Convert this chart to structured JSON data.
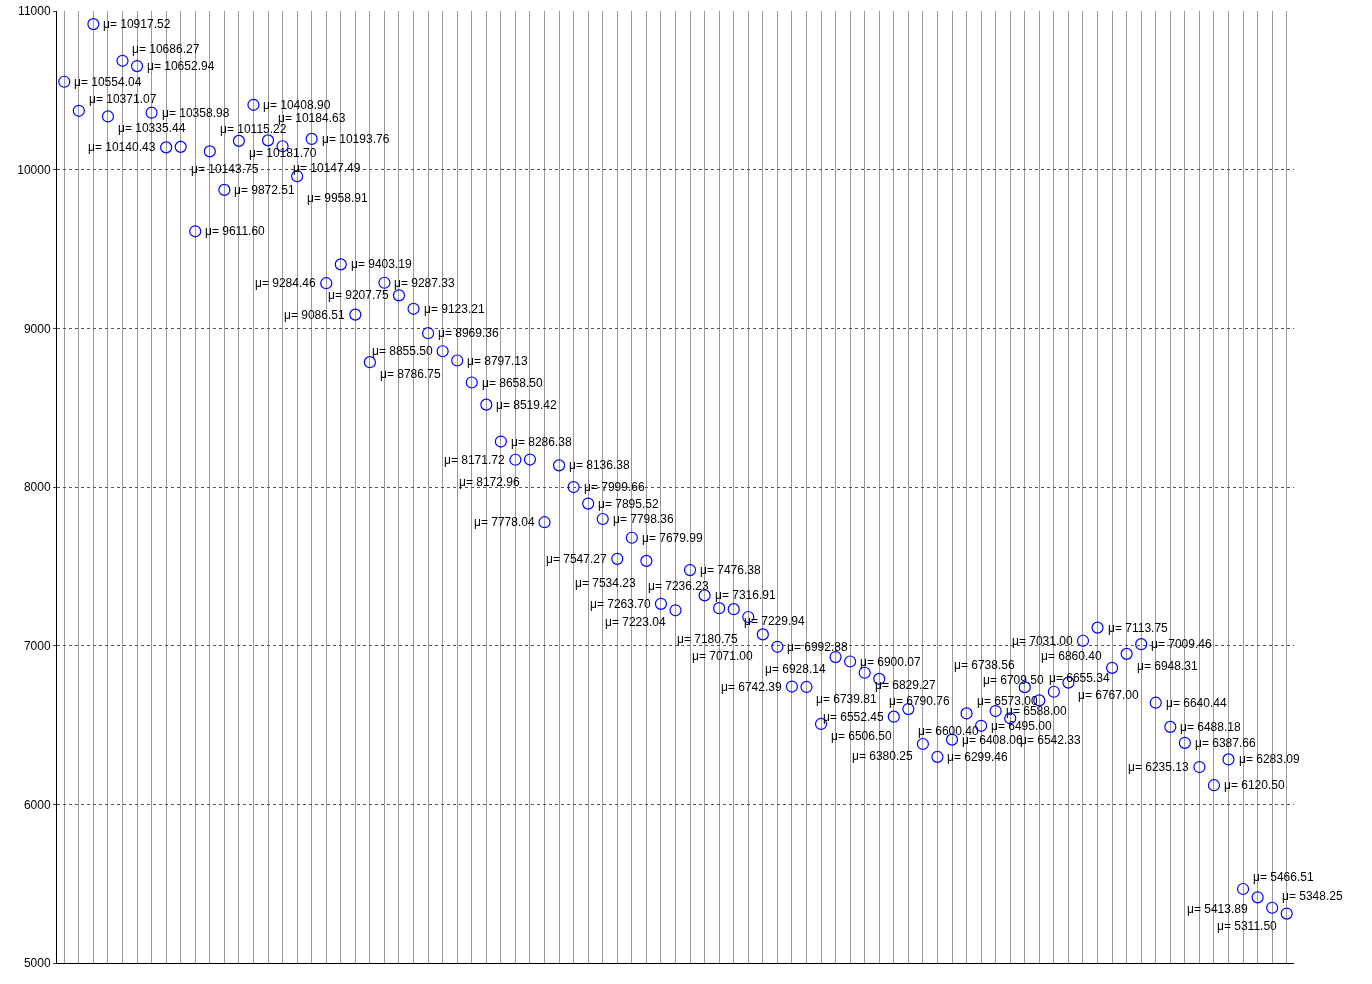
{
  "chart_data": {
    "type": "scatter",
    "marker": "circle",
    "grid": true,
    "categories": [
      null,
      null,
      null,
      null,
      null,
      null,
      null,
      null,
      null,
      null,
      null,
      null,
      null,
      null,
      null,
      null,
      null,
      null,
      null,
      null,
      null,
      null,
      null,
      null,
      null,
      null,
      null,
      null,
      null,
      null,
      null,
      null,
      null,
      null,
      null,
      null,
      null,
      null,
      null,
      null,
      null,
      null,
      null,
      null,
      null,
      null,
      null,
      null,
      null,
      null,
      null,
      null,
      null,
      null,
      null,
      null,
      null,
      null,
      null,
      null,
      null,
      null,
      null,
      null,
      null,
      null,
      null,
      null,
      null,
      null,
      null,
      null,
      null,
      null,
      null,
      null,
      null,
      null,
      null,
      null,
      null,
      null,
      null,
      null,
      null
    ],
    "ylim": [
      5000,
      11000
    ],
    "yticks": [
      5000,
      6000,
      7000,
      8000,
      9000,
      10000,
      11000
    ],
    "series": [
      {
        "color": "#0000ff",
        "values": [
          10554.04,
          10371.07,
          10917.52,
          10335.44,
          10686.27,
          10652.94,
          10358.98,
          10140.43,
          10143.75,
          9611.6,
          10115.22,
          9872.51,
          10181.7,
          10408.9,
          10184.63,
          10147.49,
          9958.91,
          10193.76,
          9284.46,
          9403.19,
          9086.51,
          8786.75,
          9287.33,
          9207.75,
          9123.21,
          8969.36,
          8855.5,
          8797.13,
          8658.5,
          8519.42,
          8286.38,
          8171.72,
          8172.96,
          7778.04,
          8136.38,
          7999.66,
          7895.52,
          7798.36,
          7547.27,
          7679.99,
          7534.23,
          7263.7,
          7223.04,
          7476.38,
          7316.91,
          7236.23,
          7229.94,
          7180.75,
          7071.0,
          6992.88,
          6742.39,
          6739.81,
          6506.5,
          6928.14,
          6900.07,
          6829.27,
          6790.76,
          6552.45,
          6600.4,
          6380.25,
          6299.46,
          6408.06,
          6573.0,
          6495.0,
          6588.0,
          6542.33,
          6738.56,
          6655.34,
          6709.5,
          6767.0,
          7031.0,
          7113.75,
          6860.4,
          6948.31,
          7009.46,
          6640.44,
          6488.18,
          6387.66,
          6235.13,
          6120.5,
          6283.09,
          5466.51,
          5413.89,
          5348.25,
          5311.5
        ],
        "value_labels": [
          "μ= 10554.04",
          "μ= 10371.07",
          "μ= 10917.52",
          "μ= 10335.44",
          "μ= 10686.27",
          "μ= 10652.94",
          "μ= 10358.98",
          "μ= 10140.43",
          "μ= 10143.75",
          "μ= 9611.60",
          "μ= 10115.22",
          "μ= 9872.51",
          "μ= 10181.70",
          "μ= 10408.90",
          "μ= 10184.63",
          "μ= 10147.49",
          "μ= 9958.91",
          "μ= 10193.76",
          "μ= 9284.46",
          "μ= 9403.19",
          "μ= 9086.51",
          "μ= 8786.75",
          "μ= 9287.33",
          "μ= 9207.75",
          "μ= 9123.21",
          "μ= 8969.36",
          "μ= 8855.50",
          "μ= 8797.13",
          "μ= 8658.50",
          "μ= 8519.42",
          "μ= 8286.38",
          "μ= 8171.72",
          "μ= 8172.96",
          "μ= 7778.04",
          "μ= 8136.38",
          "μ= 7999.66",
          "μ= 7895.52",
          "μ= 7798.36",
          "μ= 7547.27",
          "μ= 7679.99",
          "μ= 7534.23",
          "μ= 7263.70",
          "μ= 7223.04",
          "μ= 7476.38",
          "μ= 7316.91",
          "μ= 7236.23",
          "μ= 7229.94",
          "μ= 7180.75",
          "μ= 7071.00",
          "μ= 6992.88",
          "μ= 6742.39",
          "μ= 6739.81",
          "μ= 6506.50",
          "μ= 6928.14",
          "μ= 6900.07",
          "μ= 6829.27",
          "μ= 6790.76",
          "μ= 6552.45",
          "μ= 6600.40",
          "μ= 6380.25",
          "μ= 6299.46",
          "μ= 6408.06",
          "μ= 6573.00",
          "μ= 6495.00",
          "μ= 6588.00",
          "μ= 6542.33",
          "μ= 6738.56",
          "μ= 6655.34",
          "μ= 6709.50",
          "μ= 6767.00",
          "μ= 7031.00",
          "μ= 7113.75",
          "μ= 6860.40",
          "μ= 6948.31",
          "μ= 7009.46",
          "μ= 6640.44",
          "μ= 6488.18",
          "μ= 6387.66",
          "μ= 6235.13",
          "μ= 6120.50",
          "μ= 6283.09",
          "μ= 5466.51",
          "μ= 5413.89",
          "μ= 5348.25",
          "μ= 5311.50"
        ]
      }
    ]
  }
}
